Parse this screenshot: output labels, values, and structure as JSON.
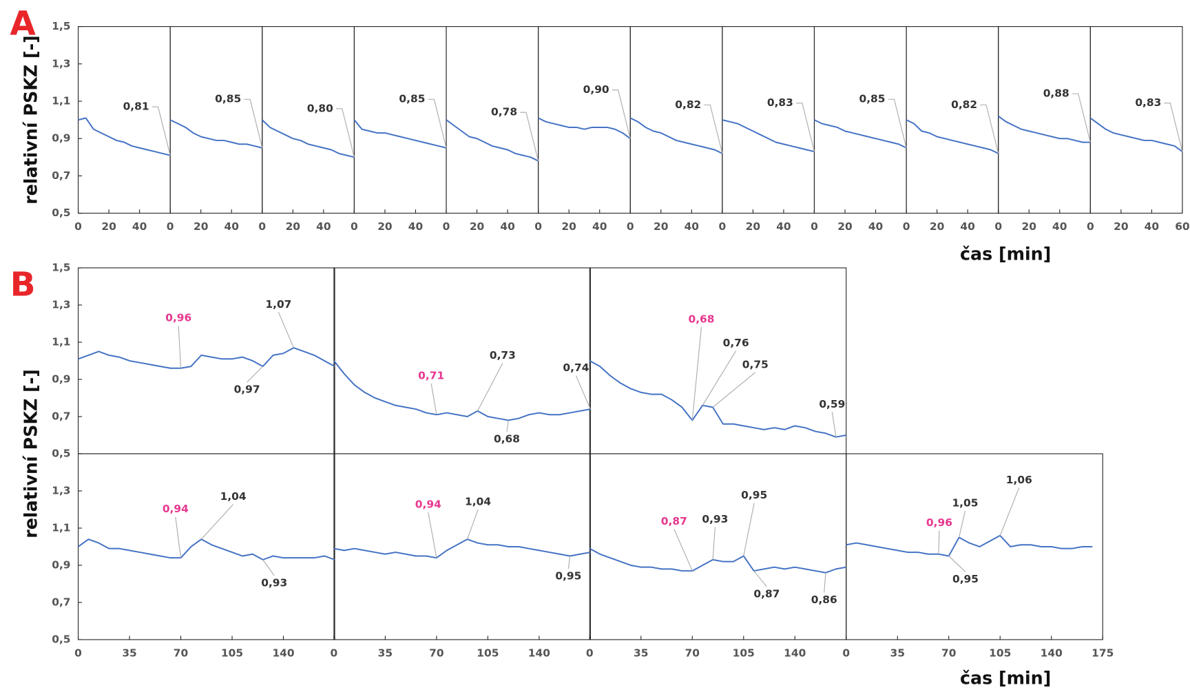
{
  "chart_data": [
    {
      "type": "line",
      "panel_label": "A",
      "y_label": "relativní PSKZ [-]",
      "x_label": "čas [min]",
      "color": "#4472c4",
      "ylim": [
        0.5,
        1.5
      ],
      "yticks": [
        {
          "value": 0.5,
          "label": "0,5"
        },
        {
          "value": 0.7,
          "label": "0,7"
        },
        {
          "value": 0.9,
          "label": "0,9"
        },
        {
          "value": 1.1,
          "label": "1,1"
        },
        {
          "value": 1.3,
          "label": "1,3"
        },
        {
          "value": 1.5,
          "label": "1,5"
        }
      ],
      "xlim": [
        0,
        60
      ],
      "xticks": [
        0,
        20,
        40,
        60
      ],
      "x": [
        0,
        5,
        10,
        15,
        20,
        25,
        30,
        35,
        40,
        45,
        50,
        55,
        60
      ],
      "subplots": [
        {
          "values": [
            1.0,
            1.01,
            0.95,
            0.93,
            0.91,
            0.89,
            0.88,
            0.86,
            0.85,
            0.84,
            0.83,
            0.82,
            0.81
          ],
          "annotations": [
            {
              "x": 60,
              "value": 0.81,
              "label": "0,81"
            }
          ]
        },
        {
          "values": [
            1.0,
            0.98,
            0.96,
            0.93,
            0.91,
            0.9,
            0.89,
            0.89,
            0.88,
            0.87,
            0.87,
            0.86,
            0.85
          ],
          "annotations": [
            {
              "x": 60,
              "value": 0.85,
              "label": "0,85"
            }
          ]
        },
        {
          "values": [
            1.0,
            0.96,
            0.94,
            0.92,
            0.9,
            0.89,
            0.87,
            0.86,
            0.85,
            0.84,
            0.82,
            0.81,
            0.8
          ],
          "annotations": [
            {
              "x": 60,
              "value": 0.8,
              "label": "0,80"
            }
          ]
        },
        {
          "values": [
            1.0,
            0.95,
            0.94,
            0.93,
            0.93,
            0.92,
            0.91,
            0.9,
            0.89,
            0.88,
            0.87,
            0.86,
            0.85
          ],
          "annotations": [
            {
              "x": 60,
              "value": 0.85,
              "label": "0,85"
            }
          ]
        },
        {
          "values": [
            1.0,
            0.97,
            0.94,
            0.91,
            0.9,
            0.88,
            0.86,
            0.85,
            0.84,
            0.82,
            0.81,
            0.8,
            0.78
          ],
          "annotations": [
            {
              "x": 60,
              "value": 0.78,
              "label": "0,78"
            }
          ]
        },
        {
          "values": [
            1.01,
            0.99,
            0.98,
            0.97,
            0.96,
            0.96,
            0.95,
            0.96,
            0.96,
            0.96,
            0.95,
            0.93,
            0.9
          ],
          "annotations": [
            {
              "x": 60,
              "value": 0.9,
              "label": "0,90"
            }
          ]
        },
        {
          "values": [
            1.01,
            0.99,
            0.96,
            0.94,
            0.93,
            0.91,
            0.89,
            0.88,
            0.87,
            0.86,
            0.85,
            0.84,
            0.82
          ],
          "annotations": [
            {
              "x": 60,
              "value": 0.82,
              "label": "0,82"
            }
          ]
        },
        {
          "values": [
            1.0,
            0.99,
            0.98,
            0.96,
            0.94,
            0.92,
            0.9,
            0.88,
            0.87,
            0.86,
            0.85,
            0.84,
            0.83
          ],
          "annotations": [
            {
              "x": 60,
              "value": 0.83,
              "label": "0,83"
            }
          ]
        },
        {
          "values": [
            1.0,
            0.98,
            0.97,
            0.96,
            0.94,
            0.93,
            0.92,
            0.91,
            0.9,
            0.89,
            0.88,
            0.87,
            0.85
          ],
          "annotations": [
            {
              "x": 60,
              "value": 0.85,
              "label": "0,85"
            }
          ]
        },
        {
          "values": [
            1.0,
            0.98,
            0.94,
            0.93,
            0.91,
            0.9,
            0.89,
            0.88,
            0.87,
            0.86,
            0.85,
            0.84,
            0.82
          ],
          "annotations": [
            {
              "x": 60,
              "value": 0.82,
              "label": "0,82"
            }
          ]
        },
        {
          "values": [
            1.02,
            0.99,
            0.97,
            0.95,
            0.94,
            0.93,
            0.92,
            0.91,
            0.9,
            0.9,
            0.89,
            0.88,
            0.88
          ],
          "annotations": [
            {
              "x": 60,
              "value": 0.88,
              "label": "0,88"
            }
          ]
        },
        {
          "values": [
            1.01,
            0.98,
            0.95,
            0.93,
            0.92,
            0.91,
            0.9,
            0.89,
            0.89,
            0.88,
            0.87,
            0.86,
            0.83
          ],
          "annotations": [
            {
              "x": 60,
              "value": 0.83,
              "label": "0,83"
            }
          ]
        }
      ]
    },
    {
      "type": "line",
      "panel_label": "B",
      "y_label": "relativní PSKZ [-]",
      "x_label": "čas [min]",
      "color": "#4472c4",
      "ylim": [
        0.5,
        1.5
      ],
      "yticks": [
        {
          "value": 0.5,
          "label": "0,5"
        },
        {
          "value": 0.7,
          "label": "0,7"
        },
        {
          "value": 0.9,
          "label": "0,9"
        },
        {
          "value": 1.1,
          "label": "1,1"
        },
        {
          "value": 1.3,
          "label": "1,3"
        },
        {
          "value": 1.5,
          "label": "1,5"
        }
      ],
      "xlim": [
        0,
        175
      ],
      "xticks": [
        0,
        35,
        70,
        105,
        140,
        175
      ],
      "x": [
        0,
        7,
        14,
        21,
        28,
        35,
        42,
        49,
        56,
        63,
        70,
        77,
        84,
        91,
        98,
        105,
        112,
        119,
        126,
        133,
        140,
        147,
        154,
        161,
        168,
        175
      ],
      "subplots": [
        {
          "values": [
            1.01,
            1.03,
            1.05,
            1.03,
            1.02,
            1.0,
            0.99,
            0.98,
            0.97,
            0.96,
            0.96,
            0.97,
            1.03,
            1.02,
            1.01,
            1.01,
            1.02,
            1.0,
            0.97,
            1.03,
            1.04,
            1.07,
            1.05,
            1.03,
            1.0,
            0.97
          ],
          "annotations": [
            {
              "x": 70,
              "value": 0.96,
              "label": "0,96",
              "color": "#e6378f"
            },
            {
              "x": 147,
              "value": 1.07,
              "label": "1,07"
            },
            {
              "x": 126,
              "value": 0.97,
              "label": "0,97"
            }
          ]
        },
        {
          "values": [
            1.0,
            0.93,
            0.87,
            0.83,
            0.8,
            0.78,
            0.76,
            0.75,
            0.74,
            0.72,
            0.71,
            0.72,
            0.71,
            0.7,
            0.73,
            0.7,
            0.69,
            0.68,
            0.69,
            0.71,
            0.72,
            0.71,
            0.71,
            0.72,
            0.73,
            0.74
          ],
          "annotations": [
            {
              "x": 70,
              "value": 0.71,
              "label": "0,71",
              "color": "#e6378f"
            },
            {
              "x": 98,
              "value": 0.73,
              "label": "0,73"
            },
            {
              "x": 119,
              "value": 0.68,
              "label": "0,68"
            },
            {
              "x": 175,
              "value": 0.74,
              "label": "0,74"
            }
          ]
        },
        {
          "values": [
            1.0,
            0.97,
            0.92,
            0.88,
            0.85,
            0.83,
            0.82,
            0.82,
            0.79,
            0.75,
            0.68,
            0.76,
            0.75,
            0.66,
            0.66,
            0.65,
            0.64,
            0.63,
            0.64,
            0.63,
            0.65,
            0.64,
            0.62,
            0.61,
            0.59,
            0.6
          ],
          "annotations": [
            {
              "x": 70,
              "value": 0.68,
              "label": "0,68",
              "color": "#e6378f"
            },
            {
              "x": 77,
              "value": 0.76,
              "label": "0,76"
            },
            {
              "x": 84,
              "value": 0.75,
              "label": "0,75"
            },
            {
              "x": 168,
              "value": 0.59,
              "label": "0,59"
            }
          ]
        },
        {
          "values": [
            1.0,
            1.04,
            1.02,
            0.99,
            0.99,
            0.98,
            0.97,
            0.96,
            0.95,
            0.94,
            0.94,
            1.0,
            1.04,
            1.01,
            0.99,
            0.97,
            0.95,
            0.96,
            0.93,
            0.95,
            0.94,
            0.94,
            0.94,
            0.94,
            0.95,
            0.93
          ],
          "annotations": [
            {
              "x": 70,
              "value": 0.94,
              "label": "0,94",
              "color": "#e6378f"
            },
            {
              "x": 84,
              "value": 1.04,
              "label": "1,04"
            },
            {
              "x": 126,
              "value": 0.93,
              "label": "0,93"
            }
          ]
        },
        {
          "values": [
            0.99,
            0.98,
            0.99,
            0.98,
            0.97,
            0.96,
            0.97,
            0.96,
            0.95,
            0.95,
            0.94,
            0.98,
            1.01,
            1.04,
            1.02,
            1.01,
            1.01,
            1.0,
            1.0,
            0.99,
            0.98,
            0.97,
            0.96,
            0.95,
            0.96,
            0.97
          ],
          "annotations": [
            {
              "x": 70,
              "value": 0.94,
              "label": "0,94",
              "color": "#e6378f"
            },
            {
              "x": 91,
              "value": 1.04,
              "label": "1,04"
            },
            {
              "x": 161,
              "value": 0.95,
              "label": "0,95"
            }
          ]
        },
        {
          "values": [
            0.99,
            0.96,
            0.94,
            0.92,
            0.9,
            0.89,
            0.89,
            0.88,
            0.88,
            0.87,
            0.87,
            0.9,
            0.93,
            0.92,
            0.92,
            0.95,
            0.87,
            0.88,
            0.89,
            0.88,
            0.89,
            0.88,
            0.87,
            0.86,
            0.88,
            0.89
          ],
          "annotations": [
            {
              "x": 70,
              "value": 0.87,
              "label": "0,87",
              "color": "#e6378f"
            },
            {
              "x": 84,
              "value": 0.93,
              "label": "0,93"
            },
            {
              "x": 105,
              "value": 0.95,
              "label": "0,95"
            },
            {
              "x": 112,
              "value": 0.87,
              "label": "0,87"
            },
            {
              "x": 161,
              "value": 0.86,
              "label": "0,86"
            }
          ]
        },
        {
          "values": [
            1.01,
            1.02,
            1.01,
            1.0,
            0.99,
            0.98,
            0.97,
            0.97,
            0.96,
            0.96,
            0.95,
            1.05,
            1.02,
            1.0,
            1.03,
            1.06,
            1.0,
            1.01,
            1.01,
            1.0,
            1.0,
            0.99,
            0.99,
            1.0,
            1.0,
            null
          ],
          "annotations": [
            {
              "x": 63,
              "value": 0.96,
              "label": "0,96",
              "color": "#e6378f"
            },
            {
              "x": 77,
              "value": 1.05,
              "label": "1,05"
            },
            {
              "x": 105,
              "value": 1.06,
              "label": "1,06"
            },
            {
              "x": 70,
              "value": 0.95,
              "label": "0,95"
            }
          ]
        }
      ]
    }
  ]
}
